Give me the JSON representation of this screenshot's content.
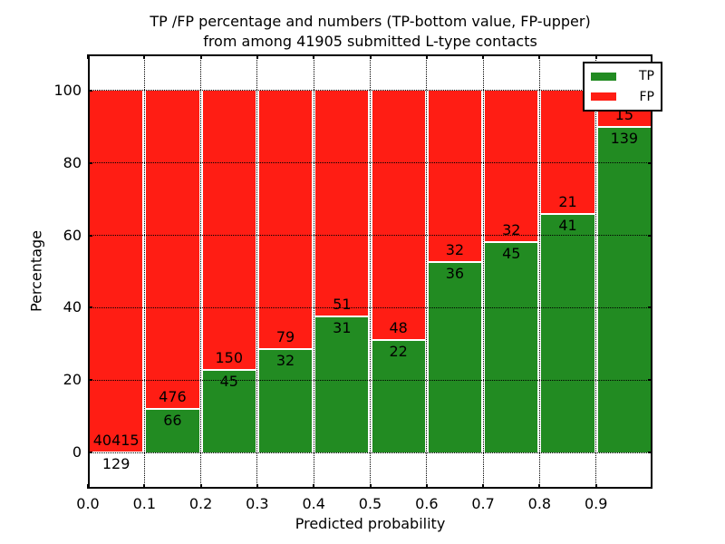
{
  "figure": {
    "title_line1": "TP /FP percentage and numbers (TP-bottom value, FP-upper)",
    "title_line2": "from among 41905 submitted L-type contacts",
    "xlabel": "Predicted probability",
    "ylabel": "Percentage"
  },
  "legend": {
    "items": [
      {
        "label": "TP",
        "color": "#228b22"
      },
      {
        "label": "FP",
        "color": "#ff1d14"
      }
    ]
  },
  "chart_data": {
    "type": "bar",
    "stacked_percentage": true,
    "title": "TP /FP percentage and numbers (TP-bottom value, FP-upper) from among 41905 submitted L-type contacts",
    "xlabel": "Predicted probability",
    "ylabel": "Percentage",
    "total_submitted": 41905,
    "xlim": [
      0.0,
      1.0
    ],
    "ylim": [
      -10,
      110
    ],
    "xticks": [
      "0.0",
      "0.1",
      "0.2",
      "0.3",
      "0.4",
      "0.5",
      "0.6",
      "0.7",
      "0.8",
      "0.9"
    ],
    "yticks": [
      "0",
      "20",
      "40",
      "60",
      "80",
      "100"
    ],
    "grid": "dotted",
    "legend_position": "upper right",
    "bins": [
      "0.0-0.1",
      "0.1-0.2",
      "0.2-0.3",
      "0.3-0.4",
      "0.4-0.5",
      "0.5-0.6",
      "0.6-0.7",
      "0.7-0.8",
      "0.8-0.9",
      "0.9-1.0"
    ],
    "series": [
      {
        "name": "TP",
        "color": "#228b22",
        "counts": [
          129,
          66,
          45,
          32,
          31,
          22,
          36,
          45,
          41,
          139
        ]
      },
      {
        "name": "FP",
        "color": "#ff1d14",
        "counts": [
          40415,
          476,
          150,
          79,
          51,
          48,
          32,
          32,
          21,
          15
        ]
      }
    ],
    "tp_percent": [
      0.32,
      12.18,
      23.08,
      28.83,
      37.8,
      31.43,
      52.94,
      58.44,
      66.13,
      90.26
    ]
  }
}
